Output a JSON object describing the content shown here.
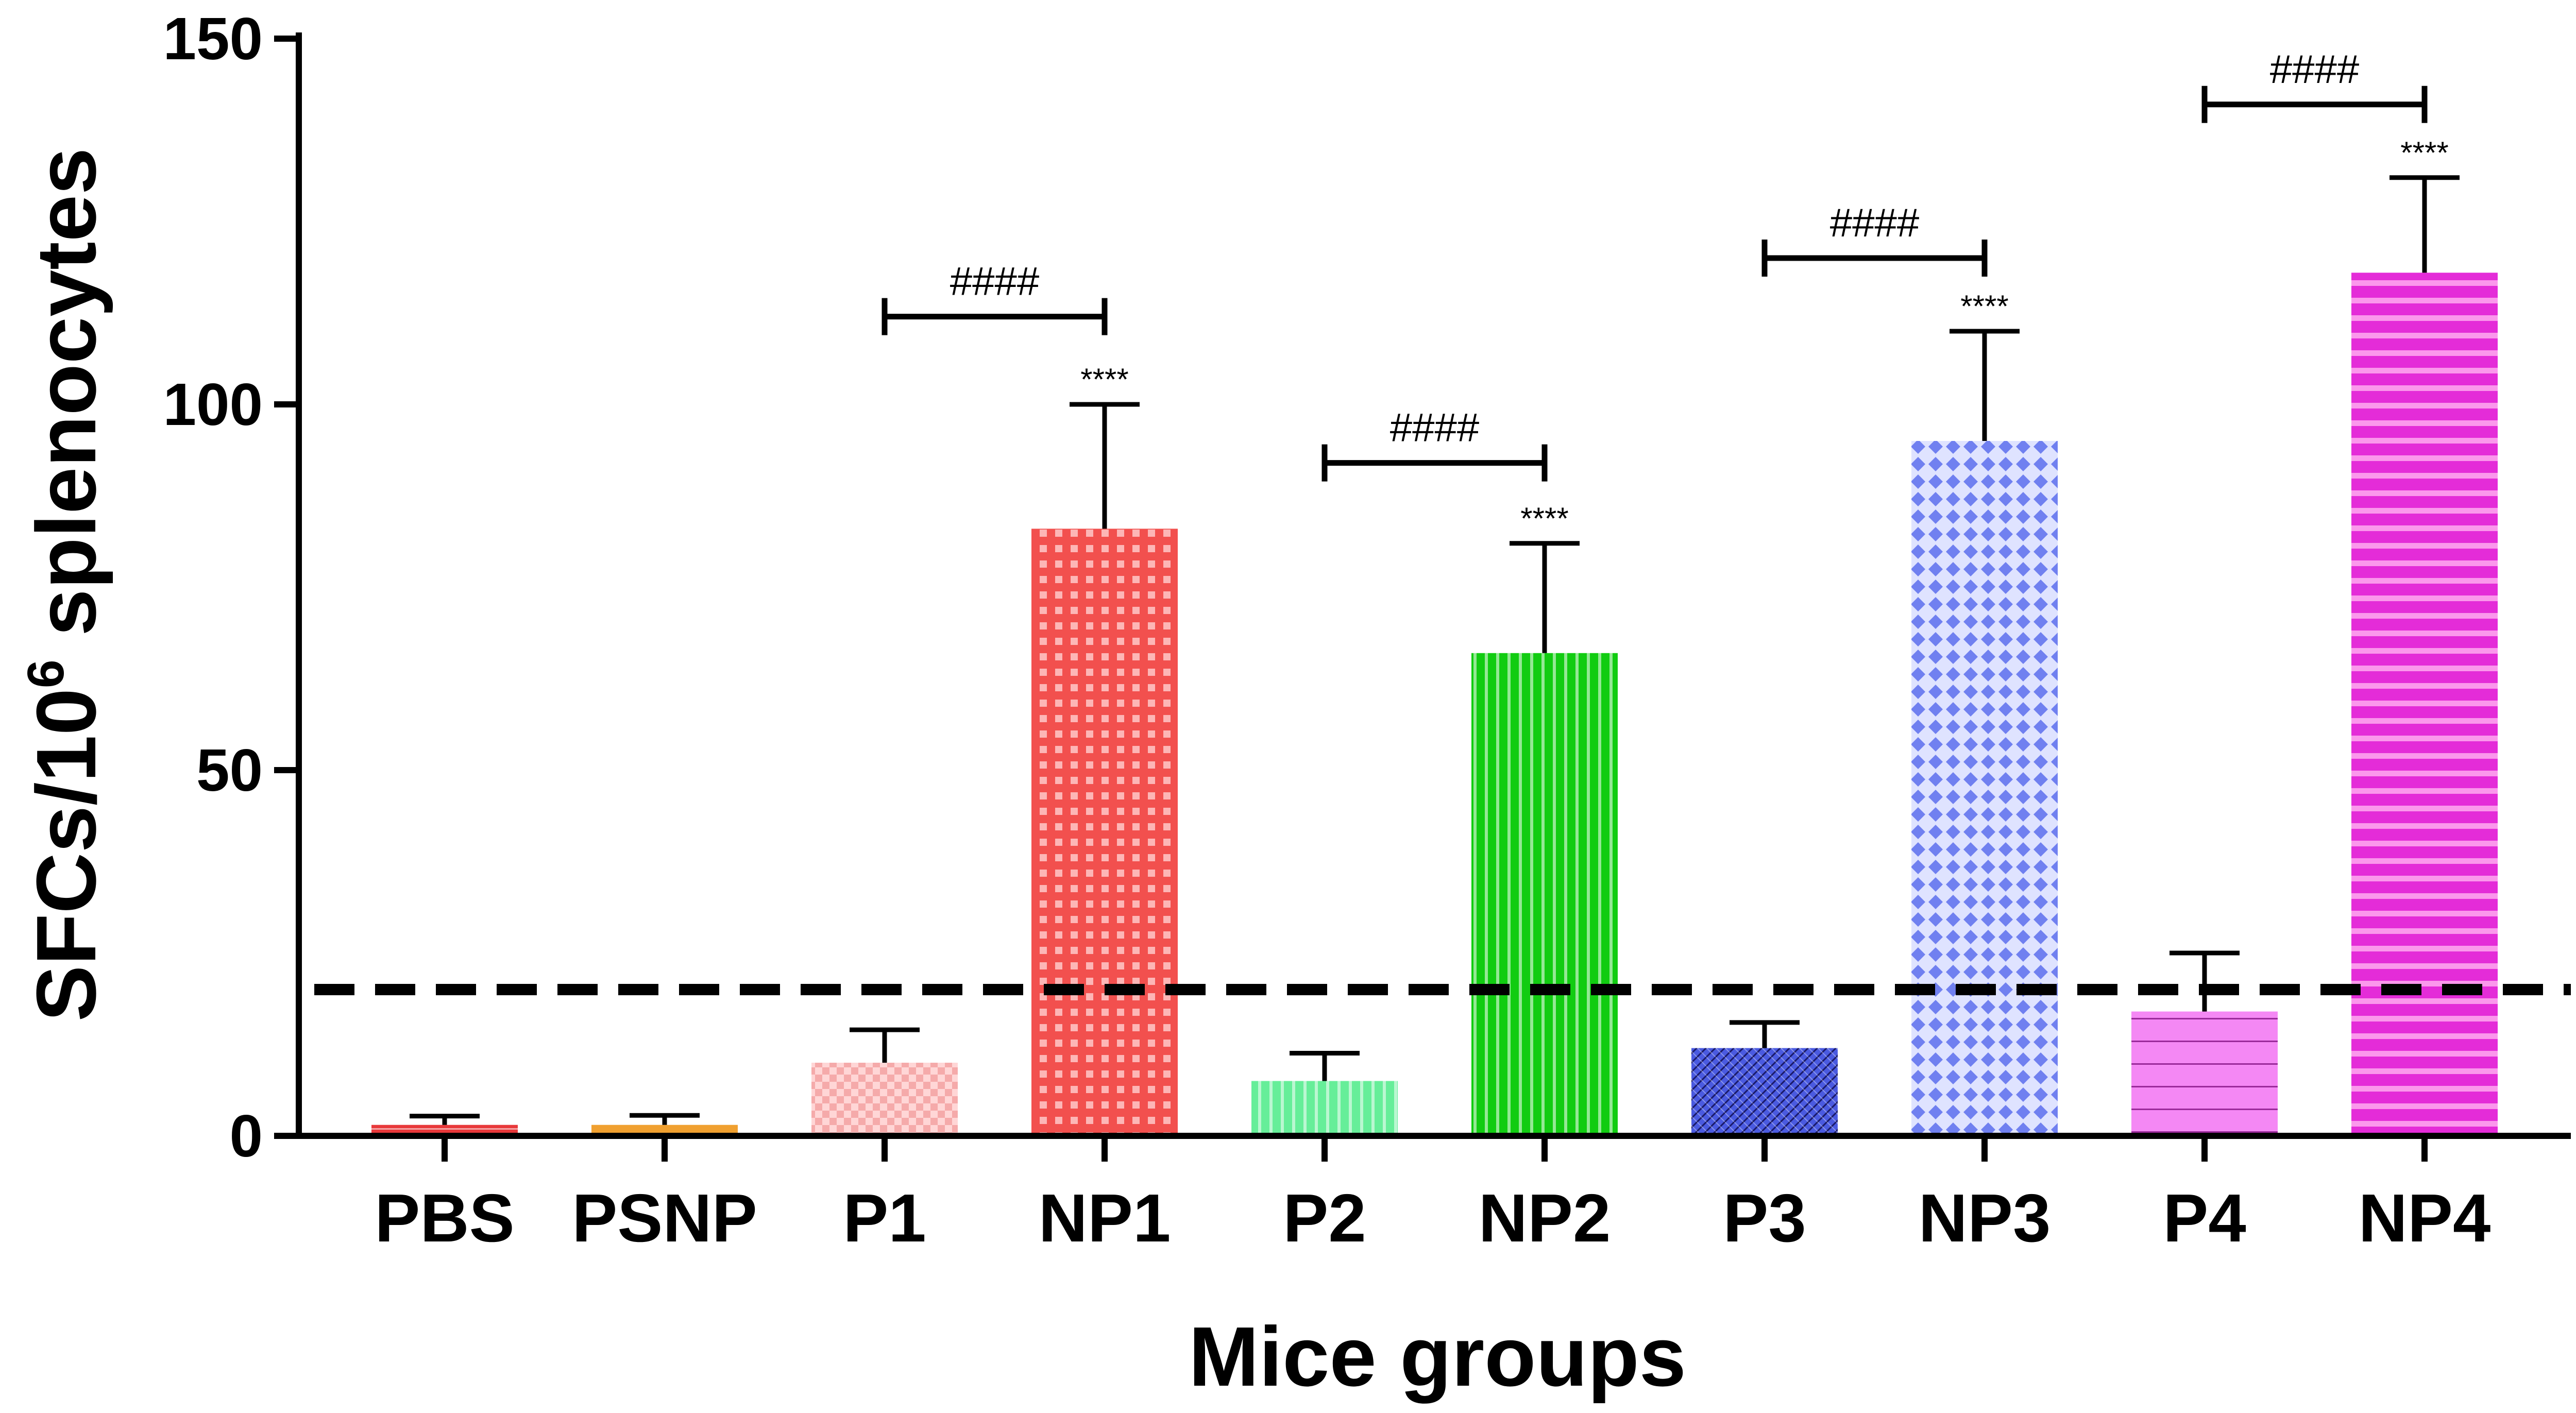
{
  "chart_data": {
    "type": "bar",
    "title": "",
    "xlabel": "Mice groups",
    "ylabel_main": "SFCs/10",
    "ylabel_sup": "6",
    "ylabel_tail": " splenocytes",
    "ylim": [
      0,
      150
    ],
    "yticks": [
      0,
      50,
      100,
      150
    ],
    "threshold": 20,
    "categories": [
      "PBS",
      "PSNP",
      "P1",
      "NP1",
      "P2",
      "NP2",
      "P3",
      "NP3",
      "P4",
      "NP4"
    ],
    "values": [
      1.5,
      1.5,
      10,
      83,
      7.5,
      66,
      12,
      95,
      17,
      118
    ],
    "errors": [
      1.2,
      1.3,
      4.5,
      17,
      3.8,
      15,
      3.5,
      15,
      8,
      13
    ],
    "colors": [
      "#e8383a",
      "#f0a030",
      "#f5aaaa",
      "#f2504e",
      "#66ee99",
      "#11cc11",
      "#4a5ae0",
      "#7080f0",
      "#f488f4",
      "#e42cd8"
    ],
    "patterns": [
      "stripes-h",
      "solid",
      "checker",
      "grid-white",
      "stripes-v",
      "stripes-v",
      "crosshatch",
      "diamond",
      "lines-h",
      "stripes-h-wide"
    ],
    "significance": [
      {
        "group": "NP1",
        "label": "****"
      },
      {
        "group": "NP2",
        "label": "****"
      },
      {
        "group": "NP3",
        "label": "****"
      },
      {
        "group": "NP4",
        "label": "****"
      }
    ],
    "comparisons": [
      {
        "from": "P1",
        "to": "NP1",
        "y": 112,
        "label": "####"
      },
      {
        "from": "P2",
        "to": "NP2",
        "y": 92,
        "label": "####"
      },
      {
        "from": "P3",
        "to": "NP3",
        "y": 120,
        "label": "####"
      },
      {
        "from": "P4",
        "to": "NP4",
        "y": 141,
        "label": "####"
      }
    ]
  }
}
